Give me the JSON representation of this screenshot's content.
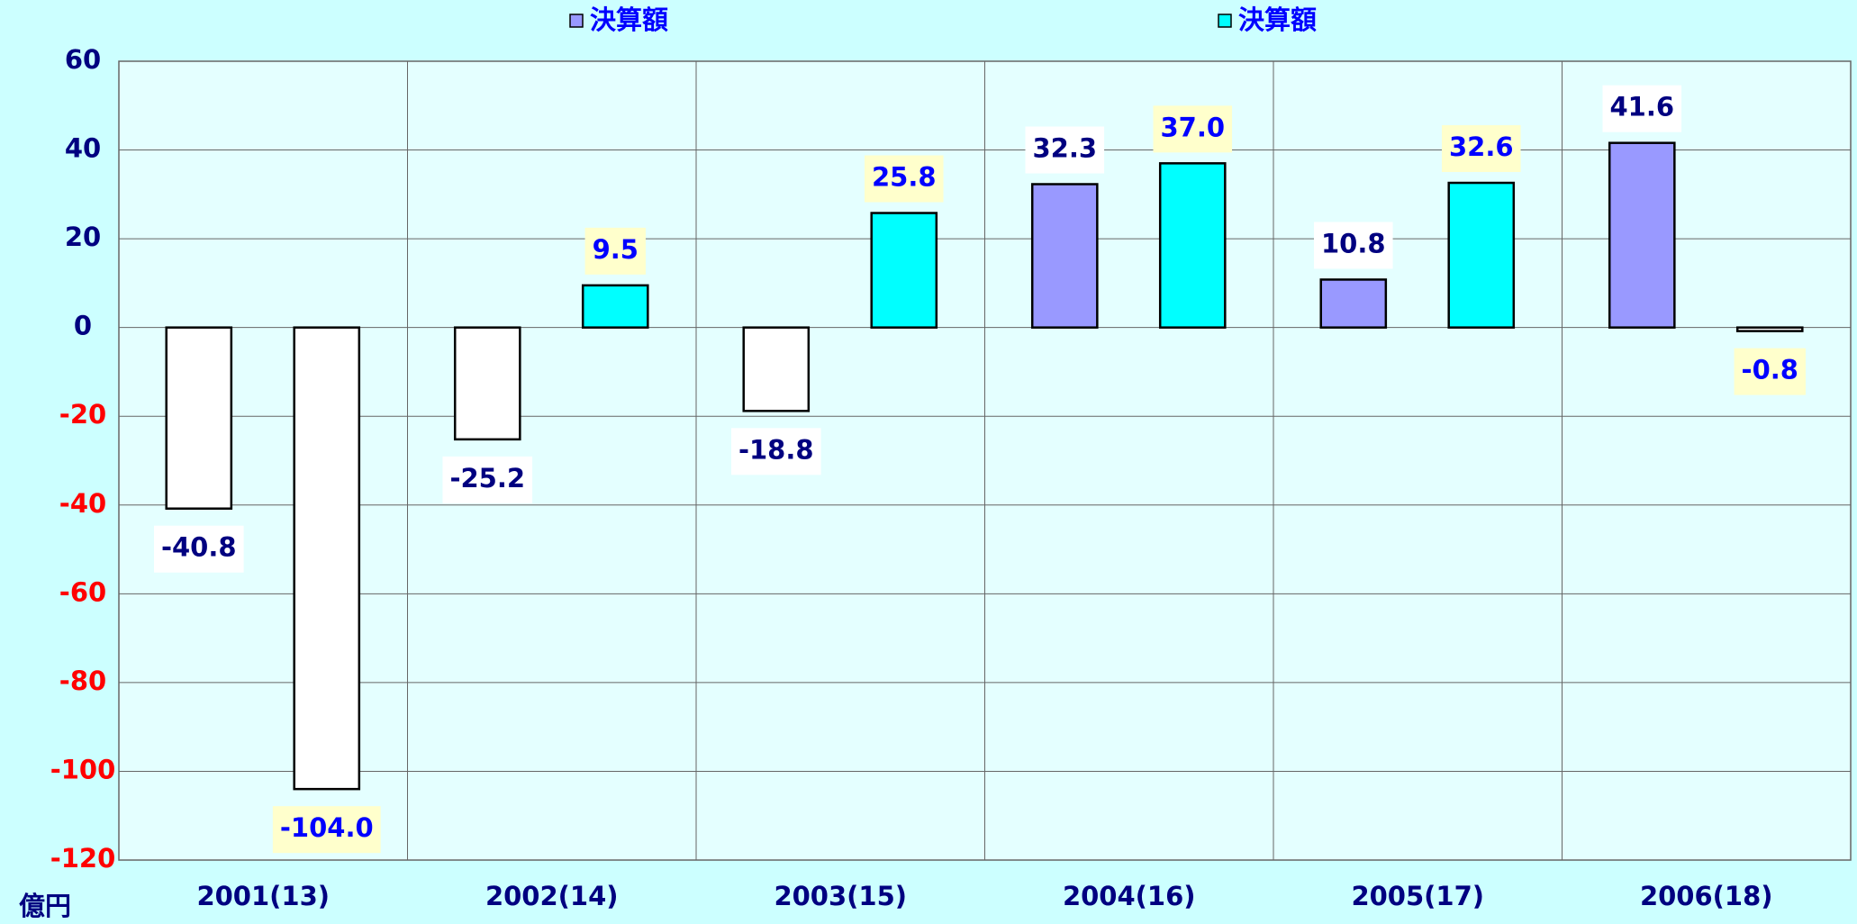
{
  "chart_data": {
    "type": "bar",
    "categories": [
      "2001(13)",
      "2002(14)",
      "2003(15)",
      "2004(16)",
      "2005(17)",
      "2006(18)"
    ],
    "series": [
      {
        "name": "決算額",
        "color": "#9999ff",
        "values": [
          -40.8,
          -25.2,
          -18.8,
          32.3,
          10.8,
          41.6
        ]
      },
      {
        "name": "決算額",
        "color": "#00ffff",
        "values": [
          -104.0,
          9.5,
          25.8,
          37.0,
          32.6,
          -0.8
        ]
      }
    ],
    "value_labels": [
      [
        "-40.8",
        "-25.2",
        "-18.8",
        "32.3",
        "10.8",
        "41.6"
      ],
      [
        "-104.0",
        "9.5",
        "25.8",
        "37.0",
        "32.6",
        "-0.8"
      ]
    ],
    "negative_color": "#ffffff",
    "negative_tick_color": "#ff0000",
    "y_unit": "億円",
    "ylim": [
      -120,
      60
    ],
    "yticks": [
      -120,
      -100,
      -80,
      -60,
      -40,
      -20,
      0,
      20,
      40,
      60
    ],
    "grid": true
  }
}
